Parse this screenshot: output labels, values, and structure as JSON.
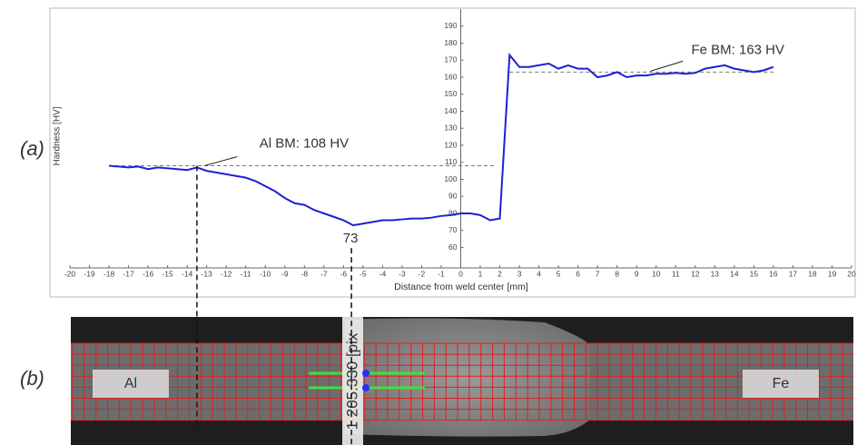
{
  "chart_data": {
    "type": "line",
    "xlabel": "Distance from weld center [mm]",
    "ylabel": "Hardness [HV]",
    "xlim": [
      -20,
      20
    ],
    "xticks": [
      -20,
      -19,
      -18,
      -17,
      -16,
      -15,
      -14,
      -13,
      -12,
      -11,
      -10,
      -9,
      -8,
      -7,
      -6,
      -5,
      -4,
      -3,
      -2,
      -1,
      0,
      1,
      2,
      3,
      4,
      5,
      6,
      7,
      8,
      9,
      10,
      11,
      12,
      13,
      14,
      15,
      16,
      17,
      18,
      19,
      20
    ],
    "ylim": [
      48,
      200
    ],
    "yticks": [
      60,
      70,
      80,
      90,
      100,
      110,
      120,
      130,
      140,
      150,
      160,
      170,
      180,
      190
    ],
    "series": [
      {
        "color": "#1f1fd6",
        "x": [
          -18,
          -17.5,
          -17,
          -16.5,
          -16,
          -15.5,
          -15,
          -14.5,
          -14,
          -13.5,
          -13,
          -12.5,
          -12,
          -11.5,
          -11,
          -10.5,
          -10,
          -9.5,
          -9,
          -8.5,
          -8,
          -7.5,
          -7,
          -6.5,
          -6,
          -5.5,
          -5,
          -4.5,
          -4,
          -3.5,
          -3,
          -2.5,
          -2,
          -1.5,
          -1,
          -0.5,
          0,
          0.5,
          1,
          1.5,
          2,
          2.5,
          3,
          3.5,
          4,
          4.5,
          5,
          5.5,
          6,
          6.5,
          7,
          7.5,
          8,
          8.5,
          9,
          9.5,
          10,
          10.5,
          11,
          11.5,
          12,
          12.5,
          13,
          13.5,
          14,
          14.5,
          15,
          15.5,
          16
        ],
        "values": [
          108,
          107.5,
          107,
          107.5,
          106,
          107,
          106.5,
          106,
          105.5,
          107,
          105,
          104,
          103,
          102,
          101,
          99,
          96,
          93,
          89,
          86,
          85,
          82,
          80,
          78,
          76,
          73,
          74,
          75,
          76,
          76,
          76.5,
          77,
          77,
          77.5,
          78.5,
          79,
          80,
          80,
          79,
          76,
          77,
          173,
          166,
          166,
          167,
          168,
          165,
          167,
          165,
          165,
          160,
          161,
          163,
          160,
          161,
          161,
          162,
          162,
          162.5,
          162,
          162.5,
          165,
          166,
          167,
          165,
          164,
          163,
          164,
          166
        ]
      }
    ],
    "reference_lines": [
      {
        "value": 108,
        "label": "Al BM: 108 HV",
        "xrange": [
          -18,
          1.7
        ]
      },
      {
        "value": 163,
        "label": "Fe BM: 163 HV",
        "xrange": [
          2.5,
          16
        ]
      }
    ],
    "min_annotation": 73
  },
  "image": {
    "panel_a": "(a)",
    "panel_b": "(b)",
    "left_label": "Al",
    "right_label": "Fe",
    "scale_text": "1 205.330 [pix"
  }
}
